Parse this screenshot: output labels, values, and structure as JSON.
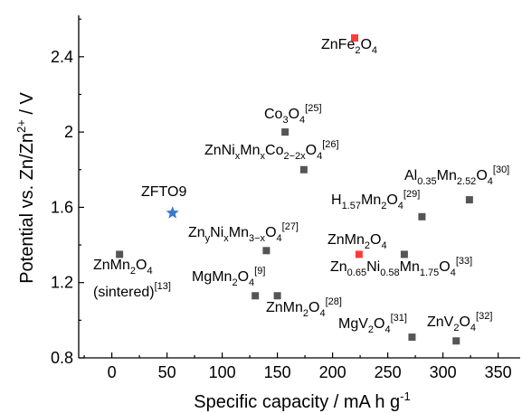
{
  "chart_data": {
    "type": "scatter",
    "xlabel": "Specific capacity / mA h g-1",
    "ylabel": "Potential vs. Zn/Zn2+ / V",
    "xlim": [
      -30,
      370
    ],
    "ylim": [
      0.8,
      2.62
    ],
    "xticks": [
      0,
      50,
      100,
      150,
      200,
      250,
      300,
      350
    ],
    "yticks": [
      0.8,
      1.2,
      1.6,
      2.0,
      2.4
    ],
    "ytick_labels": [
      "0.8",
      "1.2",
      "1.6",
      "2",
      "2.4"
    ],
    "grid": false,
    "points": [
      {
        "label": "ZnFe2O4",
        "x": 220,
        "y": 2.5,
        "color": "#ff3b3b",
        "marker": "square"
      },
      {
        "label": "Co3O4[25]",
        "x": 157,
        "y": 2.0,
        "color": "#555555",
        "marker": "square"
      },
      {
        "label": "ZnNixMnxCo2-2xO4[26]",
        "x": 174,
        "y": 1.8,
        "color": "#555555",
        "marker": "square"
      },
      {
        "label": "Al0.35Mn2.52O4[30]",
        "x": 324,
        "y": 1.64,
        "color": "#555555",
        "marker": "square"
      },
      {
        "label": "H1.57Mn2O4[29]",
        "x": 281,
        "y": 1.55,
        "color": "#555555",
        "marker": "square"
      },
      {
        "label": "ZFTO9",
        "x": 55,
        "y": 1.57,
        "color": "#3b78c9",
        "marker": "star"
      },
      {
        "label": "ZnyNixMn3-xO4[27]",
        "x": 140,
        "y": 1.37,
        "color": "#555555",
        "marker": "square"
      },
      {
        "label": "ZnMn2O4",
        "x": 224,
        "y": 1.35,
        "color": "#ff3b3b",
        "marker": "square"
      },
      {
        "label": "Zn0.65Ni0.58Mn1.75O4[33]",
        "x": 265,
        "y": 1.35,
        "color": "#555555",
        "marker": "square"
      },
      {
        "label": "ZnMn2O4 (sintered)[13]",
        "x": 7,
        "y": 1.35,
        "color": "#555555",
        "marker": "square"
      },
      {
        "label": "MgMn2O4[9]",
        "x": 130,
        "y": 1.13,
        "color": "#555555",
        "marker": "square"
      },
      {
        "label": "ZnMn2O4[28]",
        "x": 150,
        "y": 1.13,
        "color": "#555555",
        "marker": "square"
      },
      {
        "label": "MgV2O4[31]",
        "x": 272,
        "y": 0.91,
        "color": "#555555",
        "marker": "square"
      },
      {
        "label": "ZnV2O4[32]",
        "x": 312,
        "y": 0.89,
        "color": "#555555",
        "marker": "square"
      }
    ]
  }
}
